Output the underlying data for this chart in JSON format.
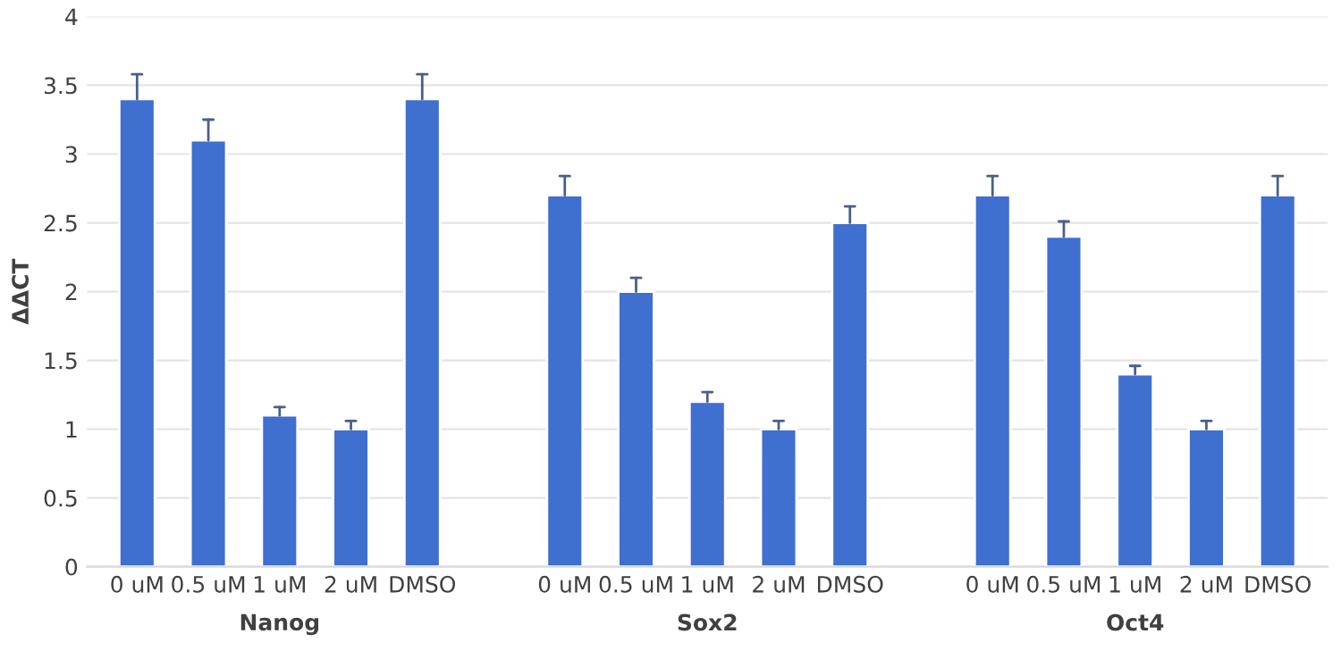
{
  "chart_data": {
    "type": "bar",
    "ylabel": "ΔΔCT",
    "categories": [
      "0 uM",
      "0.5 uM",
      "1 uM",
      "2 uM",
      "DMSO",
      null,
      "0 uM",
      "0.5 uM",
      "1 uM",
      "2 uM",
      "DMSO",
      null,
      "0 uM",
      "0.5 uM",
      "1 uM",
      "2 uM",
      "DMSO"
    ],
    "values": [
      3.4,
      3.1,
      1.1,
      1.0,
      3.4,
      null,
      2.7,
      2.0,
      1.2,
      1.0,
      2.5,
      null,
      2.7,
      2.4,
      1.4,
      1.0,
      2.7
    ],
    "errors": [
      [
        3.4,
        3.58
      ],
      [
        3.1,
        3.25
      ],
      [
        1.1,
        1.16
      ],
      [
        1.0,
        1.06
      ],
      [
        3.4,
        3.58
      ],
      null,
      [
        2.7,
        2.84
      ],
      [
        2.0,
        2.1
      ],
      [
        1.2,
        1.27
      ],
      [
        1.0,
        1.06
      ],
      [
        2.5,
        2.62
      ],
      null,
      [
        2.7,
        2.84
      ],
      [
        2.4,
        2.51
      ],
      [
        1.4,
        1.46
      ],
      [
        1.0,
        1.06
      ],
      [
        2.7,
        2.84
      ]
    ],
    "color": "#3f6fcf",
    "annotations": [
      "Nanog",
      "Sox2",
      "Oct4"
    ],
    "ylim": [
      0,
      4
    ],
    "yticks": [
      0,
      0.5,
      1,
      1.5,
      2,
      2.5,
      3,
      3.5,
      4
    ],
    "grid": "y"
  }
}
